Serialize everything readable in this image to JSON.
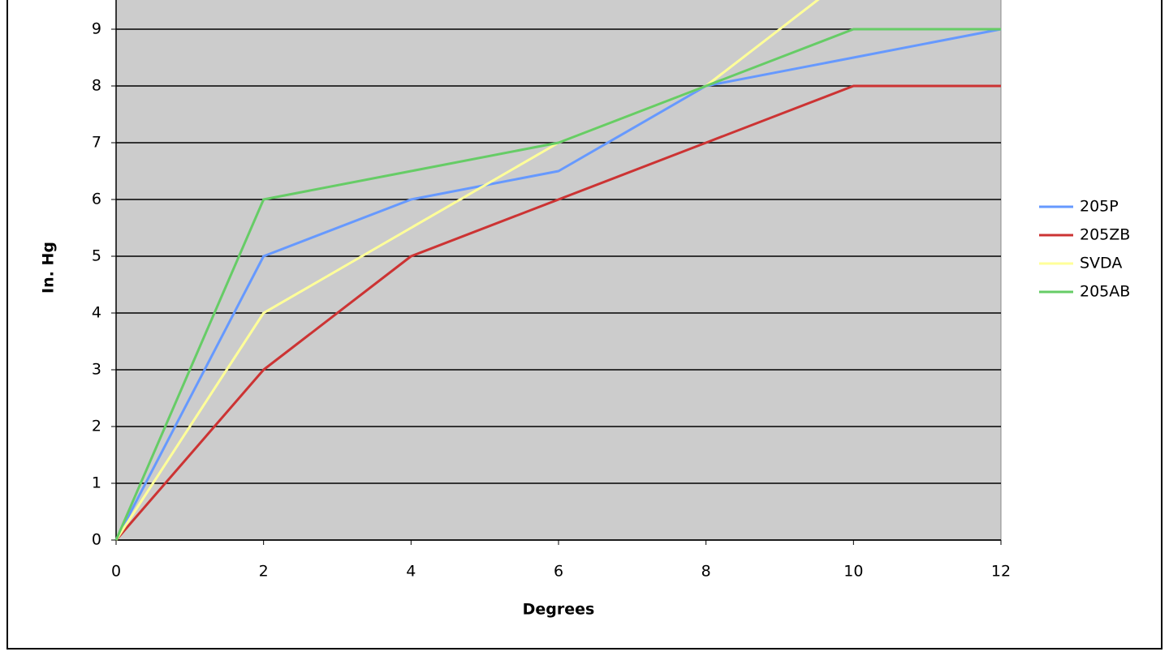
{
  "chart_data": {
    "type": "line",
    "x_label": "Degrees",
    "y_label": "In. Hg",
    "x": [
      0,
      2,
      4,
      6,
      8,
      10,
      12
    ],
    "series": [
      {
        "name": "205P",
        "color": "#6699ff",
        "values": [
          0,
          5,
          6,
          6.5,
          8,
          8.5,
          9
        ]
      },
      {
        "name": "205ZB",
        "color": "#cc3333",
        "values": [
          0,
          3,
          5,
          6,
          7,
          8,
          8
        ]
      },
      {
        "name": "SVDA",
        "color": "#ffff99",
        "values": [
          0,
          4,
          5.5,
          7,
          8,
          10,
          null
        ]
      },
      {
        "name": "205AB",
        "color": "#66cc66",
        "values": [
          0,
          6,
          6.5,
          7,
          8,
          9,
          9
        ]
      }
    ],
    "xlim": [
      0,
      12
    ],
    "xticks": [
      0,
      2,
      4,
      6,
      8,
      10,
      12
    ],
    "ylim": [
      0,
      10
    ],
    "yticks": [
      0,
      1,
      2,
      3,
      4,
      5,
      6,
      7,
      8,
      9
    ],
    "grid": true,
    "legend": "right",
    "plot_color": "#cccccc"
  }
}
